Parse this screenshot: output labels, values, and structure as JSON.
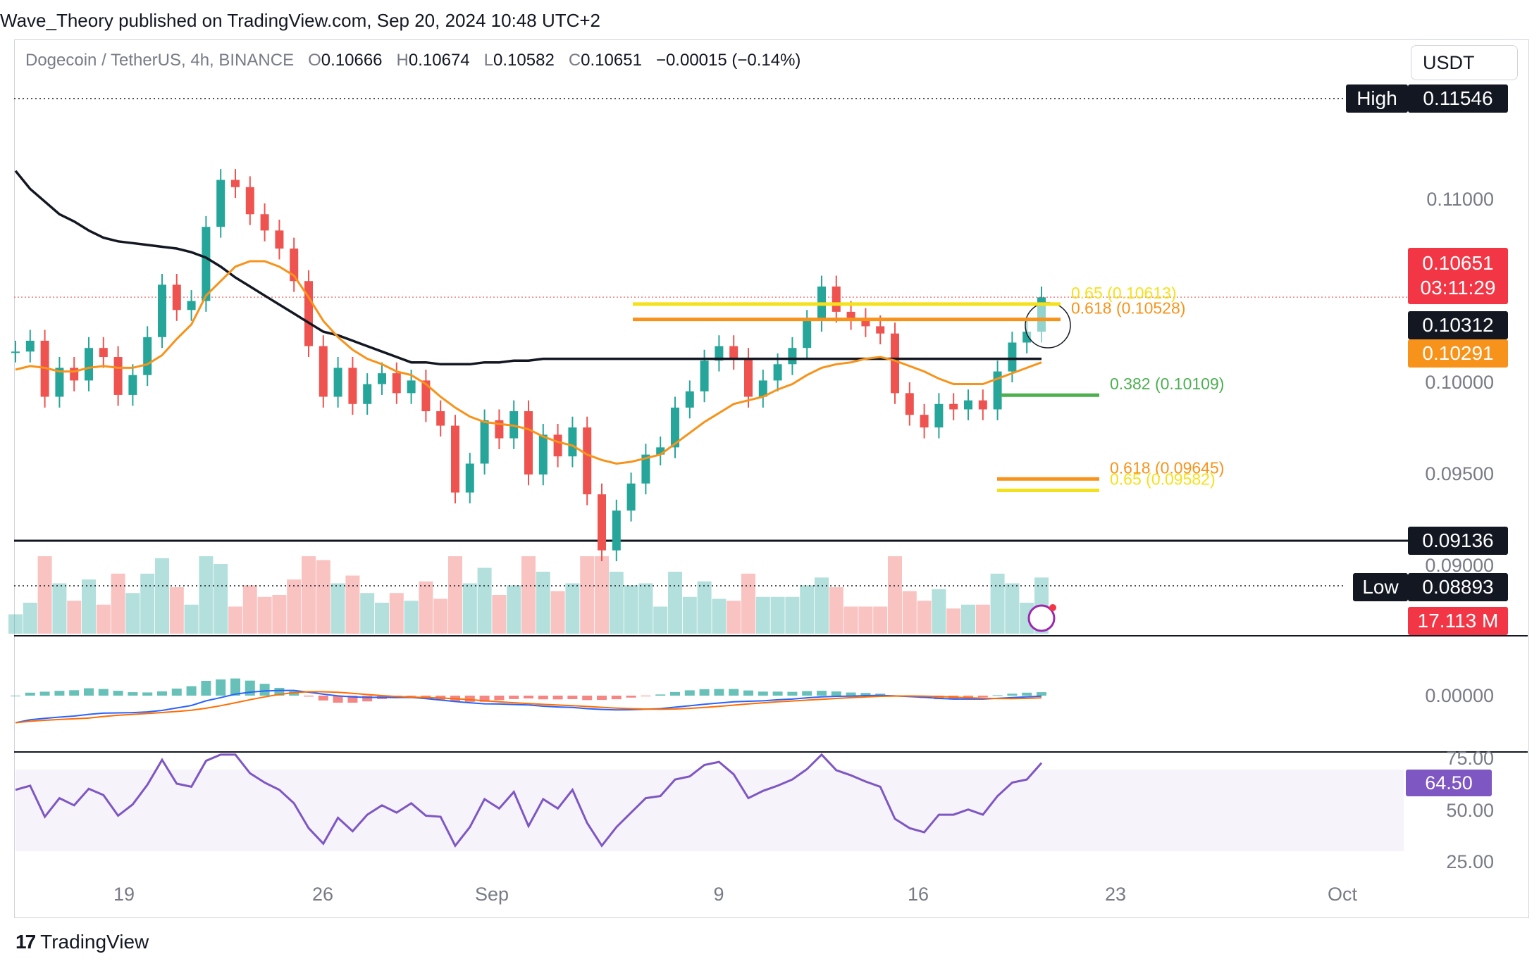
{
  "header": {
    "publisher_line": "Wave_Theory published on TradingView.com, Sep 20, 2024 10:48 UTC+2",
    "symbol": "Dogecoin / TetherUS, 4h, BINANCE",
    "open_label": "O",
    "open": "0.10666",
    "high_label": "H",
    "high": "0.10674",
    "low_label": "L",
    "low": "0.10582",
    "close_label": "C",
    "close": "0.10651",
    "change": "−0.00015 (−0.14%)",
    "currency": "USDT"
  },
  "footer": {
    "logo_mark": "17",
    "brand": "TradingView"
  },
  "colors": {
    "up": "#26a69a",
    "down": "#ef5350",
    "ema_fast": "#f7931a",
    "ema_slow": "#131722",
    "fib_yellow": "#f5e11b",
    "fib_orange": "#f7931a",
    "fib_green": "#4caf50",
    "rsi": "#7e57c2",
    "macd": "#2962ff",
    "signal": "#ff6d00"
  },
  "chart_data": {
    "type": "candlestick",
    "symbol": "Dogecoin / TetherUS",
    "interval": "4h",
    "x_ticks": [
      "19",
      "26",
      "Sep",
      "9",
      "16",
      "23",
      "Oct"
    ],
    "y_ticks": [
      "0.11000",
      "0.10000",
      "0.09500",
      "0.09000"
    ],
    "ylim": [
      0.0875,
      0.1175
    ],
    "ohlc_current": {
      "open": 0.10666,
      "high": 0.10674,
      "low": 0.10582,
      "close": 0.10651,
      "change": -0.00015,
      "change_pct": -0.14
    },
    "close_path": [
      0.1035,
      0.1041,
      0.101,
      0.1026,
      0.1019,
      0.1037,
      0.1032,
      0.1011,
      0.1022,
      0.1043,
      0.1072,
      0.1058,
      0.1063,
      0.1104,
      0.113,
      0.1126,
      0.1111,
      0.1102,
      0.1092,
      0.1074,
      0.1038,
      0.101,
      0.1026,
      0.1006,
      0.1017,
      0.1023,
      0.1012,
      0.1019,
      0.1002,
      0.0994,
      0.0957,
      0.0973,
      0.0997,
      0.0987,
      0.1002,
      0.0967,
      0.0989,
      0.0977,
      0.0993,
      0.0956,
      0.0925,
      0.0947,
      0.0962,
      0.0978,
      0.0982,
      0.1004,
      0.1013,
      0.103,
      0.1038,
      0.1031,
      0.101,
      0.1019,
      0.1028,
      0.1037,
      0.1052,
      0.1071,
      0.1057,
      0.1053,
      0.1049,
      0.1045,
      0.1012,
      0.1,
      0.0993,
      0.1006,
      0.1003,
      0.1008,
      0.1003,
      0.1024,
      0.104,
      0.1046,
      0.1065
    ],
    "ema_fast_path": [
      0.1025,
      0.1027,
      0.1026,
      0.1024,
      0.1024,
      0.1026,
      0.1027,
      0.1026,
      0.1026,
      0.1028,
      0.1033,
      0.1042,
      0.105,
      0.1066,
      0.1074,
      0.1082,
      0.1085,
      0.1085,
      0.1082,
      0.1077,
      0.1065,
      0.1052,
      0.1043,
      0.1036,
      0.1031,
      0.1028,
      0.1024,
      0.1022,
      0.1017,
      0.101,
      0.1004,
      0.0999,
      0.0996,
      0.0995,
      0.0994,
      0.0992,
      0.0988,
      0.0985,
      0.0983,
      0.0978,
      0.0975,
      0.0973,
      0.0974,
      0.0976,
      0.0978,
      0.0984,
      0.099,
      0.0996,
      0.1001,
      0.1006,
      0.1008,
      0.101,
      0.1014,
      0.1017,
      0.1022,
      0.1026,
      0.1028,
      0.1029,
      0.1031,
      0.1032,
      0.103,
      0.1027,
      0.1024,
      0.102,
      0.1017,
      0.1017,
      0.1017,
      0.102,
      0.1023,
      0.1026,
      0.1029
    ],
    "ema_slow_path": [
      0.1135,
      0.1125,
      0.1118,
      0.1111,
      0.1107,
      0.1102,
      0.1098,
      0.1096,
      0.1095,
      0.1094,
      0.1093,
      0.1092,
      0.109,
      0.1087,
      0.1082,
      0.1076,
      0.1071,
      0.1066,
      0.1061,
      0.1056,
      0.1051,
      0.1046,
      0.1044,
      0.1041,
      0.1038,
      0.1035,
      0.1032,
      0.1029,
      0.1029,
      0.1028,
      0.1028,
      0.1028,
      0.1029,
      0.1029,
      0.103,
      0.103,
      0.1031,
      0.1031,
      0.1031,
      0.1031,
      0.1031,
      0.1031,
      0.1031,
      0.1031,
      0.1031,
      0.1031,
      0.1031,
      0.1031,
      0.1031,
      0.1031,
      0.1031,
      0.1031,
      0.1031,
      0.1031,
      0.1031,
      0.1031,
      0.1031,
      0.1031,
      0.1031,
      0.1031,
      0.1031,
      0.1031,
      0.1031,
      0.1031,
      0.1031,
      0.1031,
      0.1031,
      0.1031,
      0.1031,
      0.1031,
      0.1031
    ],
    "price_labels": {
      "high_tag": "High",
      "high": "0.11546",
      "last": "0.10651",
      "countdown": "03:11:29",
      "ema_slow": "0.10312",
      "ema_fast": "0.10291",
      "support": "0.09136",
      "low_tag": "Low",
      "low": "0.08893",
      "volume": "17.113 M"
    },
    "horizontal_levels": {
      "high": 0.11546,
      "low": 0.08893,
      "support": 0.09136,
      "last": 0.10651
    },
    "fib_levels": [
      {
        "label": "0.65 (0.10613)",
        "value": 0.10613,
        "color": "#f5e11b"
      },
      {
        "label": "0.618 (0.10528)",
        "value": 0.10528,
        "color": "#f7931a"
      },
      {
        "label": "0.382 (0.10109)",
        "value": 0.10109,
        "color": "#4caf50"
      },
      {
        "label": "0.618 (0.09645)",
        "value": 0.09645,
        "color": "#f7931a"
      },
      {
        "label": "0.65 (0.09582)",
        "value": 0.09582,
        "color": "#f5e11b"
      }
    ],
    "macd": {
      "zero_label": "0.00000"
    },
    "rsi": {
      "value": "64.50",
      "ticks": [
        "75.00",
        "50.00",
        "25.00"
      ],
      "band": [
        30,
        70
      ]
    }
  }
}
